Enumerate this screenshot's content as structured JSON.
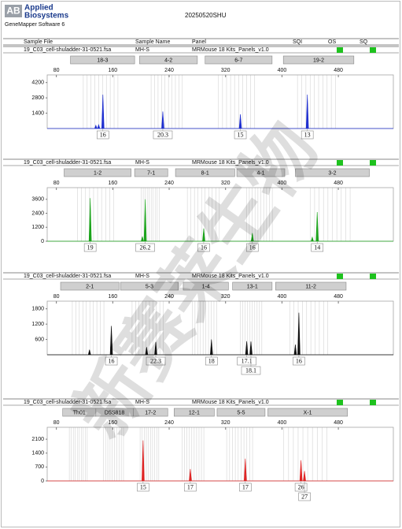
{
  "header": {
    "logo_mark": "AB",
    "logo_line1": "Applied",
    "logo_line2": "Biosystems",
    "software": "GeneMapper Software 6",
    "title": "20250520SHU"
  },
  "columns": [
    "Sample File",
    "Sample Name",
    "Panel",
    "SQI",
    "OS",
    "SQ"
  ],
  "watermark": "新赛莱生物",
  "x_axis": {
    "xlim": [
      67,
      558
    ],
    "xticks": [
      80,
      160,
      240,
      320,
      400,
      480
    ]
  },
  "panels": [
    {
      "sample_file": "19_C03_cell-shuladder-31-0521.fsa",
      "sample_name": "MH-S",
      "panel": "MRMouse 18 Kits_Panels_v1.0",
      "color": "#1f2fd0",
      "ylim": [
        0,
        4900
      ],
      "yticks": [
        1400,
        2800,
        4200
      ],
      "markers": [
        {
          "label": "18-3",
          "start": 100,
          "end": 191
        },
        {
          "label": "4-2",
          "start": 198,
          "end": 280
        },
        {
          "label": "6-7",
          "start": 291,
          "end": 386
        },
        {
          "label": "19-2",
          "start": 402,
          "end": 502
        }
      ],
      "peaks": [
        {
          "size": 136,
          "height": 300
        },
        {
          "size": 140,
          "height": 350
        },
        {
          "size": 146,
          "height": 3100,
          "allele": "16"
        },
        {
          "size": 231,
          "height": 1560,
          "allele": "20.3"
        },
        {
          "size": 341,
          "height": 1300,
          "allele": "15"
        },
        {
          "size": 436,
          "height": 3100,
          "allele": "13"
        }
      ]
    },
    {
      "sample_file": "19_C03_cell-shuladder-31-0521.fsa",
      "sample_name": "MH-S",
      "panel": "MRMouse 18 Kits_Panels_v1.0",
      "color": "#1aa31a",
      "ylim": [
        0,
        4600
      ],
      "yticks": [
        0,
        1200,
        2400,
        3600
      ],
      "markers": [
        {
          "label": "1-2",
          "start": 91,
          "end": 186
        },
        {
          "label": "7-1",
          "start": 191,
          "end": 238
        },
        {
          "label": "8-1",
          "start": 249,
          "end": 333
        },
        {
          "label": "4-1",
          "start": 336,
          "end": 404
        },
        {
          "label": "3-2",
          "start": 419,
          "end": 524
        }
      ],
      "peaks": [
        {
          "size": 128,
          "height": 3700,
          "allele": "19"
        },
        {
          "size": 202,
          "height": 400
        },
        {
          "size": 206,
          "height": 3600,
          "allele": "26.2"
        },
        {
          "size": 289,
          "height": 1100,
          "allele": "16"
        },
        {
          "size": 358,
          "height": 700,
          "allele": "16"
        },
        {
          "size": 443,
          "height": 350
        },
        {
          "size": 450,
          "height": 2500,
          "allele": "14"
        }
      ]
    },
    {
      "sample_file": "19_C03_cell-shuladder-31-0521.fsa",
      "sample_name": "MH-S",
      "panel": "MRMouse 18 Kits_Panels_v1.0",
      "color": "#111111",
      "ylim": [
        0,
        2100
      ],
      "yticks": [
        600,
        1200,
        1800
      ],
      "markers": [
        {
          "label": "2-1",
          "start": 86,
          "end": 169
        },
        {
          "label": "5-3",
          "start": 171,
          "end": 253
        },
        {
          "label": "1-4",
          "start": 260,
          "end": 324
        },
        {
          "label": "13-1",
          "start": 330,
          "end": 386
        },
        {
          "label": "11-2",
          "start": 391,
          "end": 491
        }
      ],
      "peaks": [
        {
          "size": 127,
          "height": 200
        },
        {
          "size": 158,
          "height": 1130,
          "allele": "16"
        },
        {
          "size": 208,
          "height": 300
        },
        {
          "size": 221,
          "height": 500,
          "allele": "22.3"
        },
        {
          "size": 300,
          "height": 600,
          "allele": "18"
        },
        {
          "size": 350,
          "height": 530,
          "allele": "17.1"
        },
        {
          "size": 356,
          "height": 520,
          "allele": "18.1"
        },
        {
          "size": 419,
          "height": 400
        },
        {
          "size": 424,
          "height": 1650,
          "allele": "16"
        }
      ]
    },
    {
      "sample_file": "19_C03_cell-shuladder-31-0521.fsa",
      "sample_name": "MH-S",
      "panel": "MRMouse 18 Kits_Panels_v1.0",
      "color": "#e02424",
      "ylim": [
        0,
        2700
      ],
      "yticks": [
        0,
        700,
        1400,
        2100
      ],
      "markers": [
        {
          "label": "Th01",
          "start": 89,
          "end": 136
        },
        {
          "label": "D5S818",
          "start": 136,
          "end": 189
        },
        {
          "label": "17-2",
          "start": 189,
          "end": 238
        },
        {
          "label": "12-1",
          "start": 247,
          "end": 304
        },
        {
          "label": "5-5",
          "start": 308,
          "end": 376
        },
        {
          "label": "X-1",
          "start": 380,
          "end": 493
        }
      ],
      "peaks": [
        {
          "size": 203,
          "height": 2040,
          "allele": "15"
        },
        {
          "size": 270,
          "height": 600,
          "allele": "17"
        },
        {
          "size": 348,
          "height": 1120,
          "allele": "17"
        },
        {
          "size": 427,
          "height": 1040,
          "allele": "26"
        },
        {
          "size": 432,
          "height": 500,
          "allele": "27"
        }
      ]
    }
  ]
}
